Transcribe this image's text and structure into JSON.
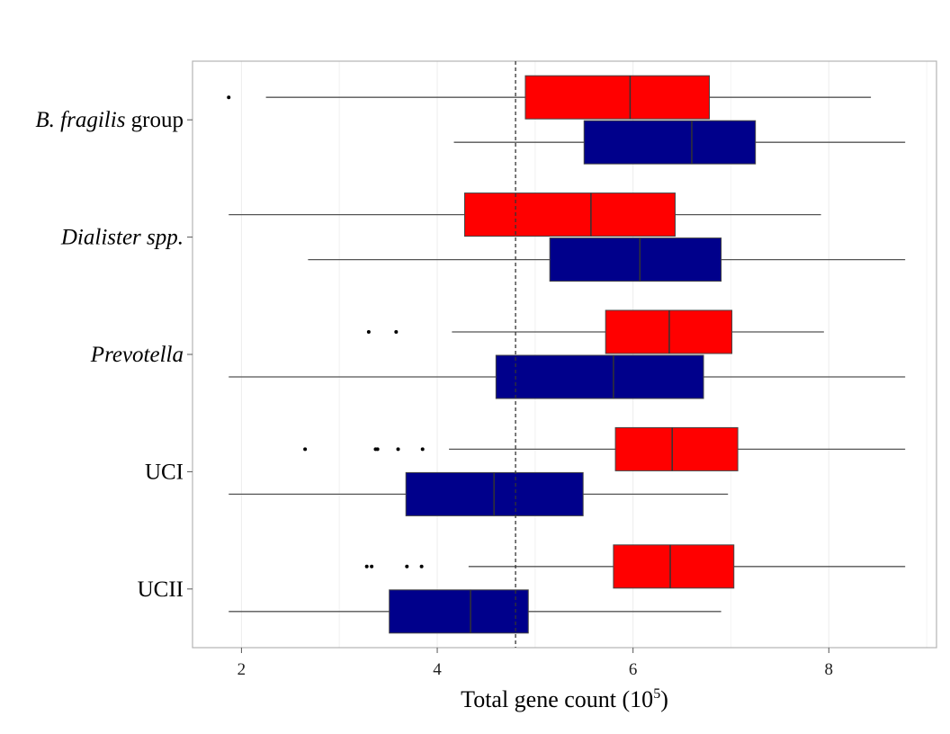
{
  "chart_data": {
    "type": "boxplot",
    "orientation": "horizontal",
    "xlabel": "Total gene count (10",
    "xlabel_sup": "5",
    "xlabel_close": ")",
    "xlim": [
      1.5,
      9.1
    ],
    "xticks": [
      2,
      4,
      6,
      8
    ],
    "xtick_labels": [
      "2",
      "4",
      "6",
      "8"
    ],
    "reference_line_x": 4.8,
    "grid": true,
    "series_colors": [
      "#ff0000",
      "#00008b"
    ],
    "categories": [
      {
        "parts": [
          {
            "text": "B. fragilis",
            "italic": true
          },
          {
            "text": " group",
            "italic": false
          }
        ],
        "boxes": [
          {
            "color": "#ff0000",
            "whisker_low": 2.25,
            "q1": 4.9,
            "median": 5.97,
            "q3": 6.78,
            "whisker_high": 8.43,
            "outliers": [
              1.87
            ]
          },
          {
            "color": "#00008b",
            "whisker_low": 4.17,
            "q1": 5.5,
            "median": 6.6,
            "q3": 7.25,
            "whisker_high": 8.78,
            "outliers": []
          }
        ]
      },
      {
        "parts": [
          {
            "text": "Dialister spp.",
            "italic": true
          }
        ],
        "boxes": [
          {
            "color": "#ff0000",
            "whisker_low": 1.87,
            "q1": 4.28,
            "median": 5.57,
            "q3": 6.43,
            "whisker_high": 7.92,
            "outliers": []
          },
          {
            "color": "#00008b",
            "whisker_low": 2.68,
            "q1": 5.15,
            "median": 6.07,
            "q3": 6.9,
            "whisker_high": 8.78,
            "outliers": []
          }
        ]
      },
      {
        "parts": [
          {
            "text": "Prevotella",
            "italic": true
          }
        ],
        "boxes": [
          {
            "color": "#ff0000",
            "whisker_low": 4.15,
            "q1": 5.72,
            "median": 6.37,
            "q3": 7.01,
            "whisker_high": 7.95,
            "outliers": [
              3.3,
              3.58
            ]
          },
          {
            "color": "#00008b",
            "whisker_low": 1.87,
            "q1": 4.6,
            "median": 5.8,
            "q3": 6.72,
            "whisker_high": 8.78,
            "outliers": []
          }
        ]
      },
      {
        "parts": [
          {
            "text": "UCI",
            "italic": false
          }
        ],
        "boxes": [
          {
            "color": "#ff0000",
            "whisker_low": 4.12,
            "q1": 5.82,
            "median": 6.4,
            "q3": 7.07,
            "whisker_high": 8.78,
            "outliers": [
              2.65,
              3.37,
              3.39,
              3.6,
              3.85
            ]
          },
          {
            "color": "#00008b",
            "whisker_low": 1.87,
            "q1": 3.68,
            "median": 4.58,
            "q3": 5.49,
            "whisker_high": 6.97,
            "outliers": []
          }
        ]
      },
      {
        "parts": [
          {
            "text": "UCII",
            "italic": false
          }
        ],
        "boxes": [
          {
            "color": "#ff0000",
            "whisker_low": 4.32,
            "q1": 5.8,
            "median": 6.38,
            "q3": 7.03,
            "whisker_high": 8.78,
            "outliers": [
              3.28,
              3.33,
              3.69,
              3.84
            ]
          },
          {
            "color": "#00008b",
            "whisker_low": 1.87,
            "q1": 3.51,
            "median": 4.34,
            "q3": 4.93,
            "whisker_high": 6.9,
            "outliers": []
          }
        ]
      }
    ]
  }
}
